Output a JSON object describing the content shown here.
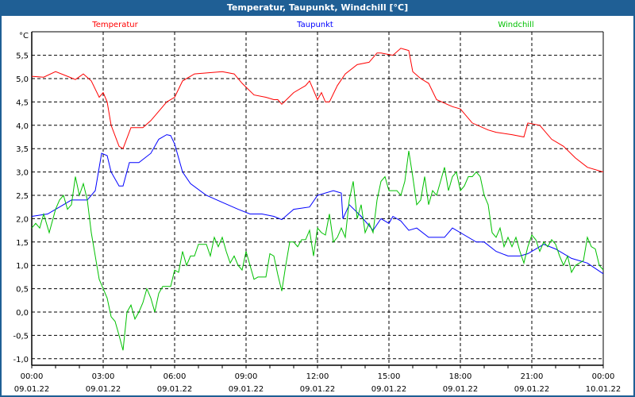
{
  "window": {
    "title": "Temperatur, Taupunkt, Windchill [°C]"
  },
  "chart_data": {
    "type": "line",
    "title": "Temperatur, Taupunkt, Windchill [°C]",
    "ylabel": "°C",
    "xlabel": "",
    "ylim": [
      -1.0,
      5.5
    ],
    "xlim_minutes": [
      0,
      1440
    ],
    "grid": true,
    "legend_placement": "top",
    "y_ticks": [
      "5,5",
      "5,0",
      "4,5",
      "4,0",
      "3,5",
      "3,0",
      "2,5",
      "2,0",
      "1,5",
      "1,0",
      "0,5",
      "0,0",
      "-0,5",
      "-1,0"
    ],
    "y_tick_values": [
      5.5,
      5.0,
      4.5,
      4.0,
      3.5,
      3.0,
      2.5,
      2.0,
      1.5,
      1.0,
      0.5,
      0.0,
      -0.5,
      -1.0
    ],
    "x_ticks": [
      {
        "minutes": 0,
        "time": "00:00",
        "date": "09.01.22"
      },
      {
        "minutes": 180,
        "time": "03:00",
        "date": "09.01.22"
      },
      {
        "minutes": 360,
        "time": "06:00",
        "date": "09.01.22"
      },
      {
        "minutes": 540,
        "time": "09:00",
        "date": "09.01.22"
      },
      {
        "minutes": 720,
        "time": "12:00",
        "date": "09.01.22"
      },
      {
        "minutes": 900,
        "time": "15:00",
        "date": "09.01.22"
      },
      {
        "minutes": 1080,
        "time": "18:00",
        "date": "09.01.22"
      },
      {
        "minutes": 1260,
        "time": "21:00",
        "date": "09.01.22"
      },
      {
        "minutes": 1440,
        "time": "00:00",
        "date": "10.01.22"
      }
    ],
    "series": [
      {
        "name": "Temperatur",
        "color": "#ff0000",
        "x": [
          0,
          30,
          60,
          90,
          110,
          130,
          150,
          170,
          180,
          190,
          200,
          220,
          230,
          250,
          280,
          300,
          320,
          340,
          360,
          380,
          410,
          440,
          480,
          510,
          530,
          560,
          590,
          610,
          620,
          630,
          660,
          690,
          700,
          710,
          720,
          730,
          740,
          750,
          770,
          790,
          820,
          850,
          870,
          880,
          910,
          930,
          950,
          960,
          980,
          1000,
          1020,
          1060,
          1080,
          1110,
          1150,
          1170,
          1210,
          1240,
          1250,
          1280,
          1310,
          1340,
          1370,
          1400,
          1440
        ],
        "values": [
          5.05,
          5.03,
          5.15,
          5.05,
          4.98,
          5.1,
          4.95,
          4.6,
          4.7,
          4.5,
          4.0,
          3.55,
          3.5,
          3.95,
          3.95,
          4.1,
          4.3,
          4.5,
          4.6,
          4.95,
          5.1,
          5.12,
          5.15,
          5.1,
          4.9,
          4.65,
          4.6,
          4.55,
          4.55,
          4.45,
          4.7,
          4.85,
          4.95,
          4.75,
          4.55,
          4.7,
          4.5,
          4.5,
          4.85,
          5.1,
          5.3,
          5.35,
          5.55,
          5.55,
          5.5,
          5.65,
          5.6,
          5.15,
          5.0,
          4.9,
          4.55,
          4.4,
          4.35,
          4.05,
          3.9,
          3.85,
          3.8,
          3.75,
          4.05,
          4.0,
          3.7,
          3.55,
          3.3,
          3.1,
          3.0
        ]
      },
      {
        "name": "Taupunkt",
        "color": "#0000ff",
        "x": [
          0,
          40,
          80,
          100,
          140,
          160,
          176,
          190,
          200,
          220,
          230,
          246,
          270,
          300,
          320,
          340,
          350,
          360,
          380,
          400,
          440,
          480,
          520,
          550,
          580,
          610,
          630,
          660,
          700,
          720,
          760,
          780,
          784,
          800,
          830,
          860,
          880,
          900,
          910,
          930,
          950,
          970,
          1000,
          1040,
          1060,
          1080,
          1120,
          1140,
          1170,
          1200,
          1230,
          1250,
          1290,
          1320,
          1360,
          1400,
          1440
        ],
        "values": [
          2.05,
          2.1,
          2.3,
          2.4,
          2.4,
          2.6,
          3.4,
          3.35,
          3.0,
          2.7,
          2.7,
          3.2,
          3.2,
          3.4,
          3.7,
          3.8,
          3.78,
          3.6,
          3.0,
          2.75,
          2.5,
          2.35,
          2.2,
          2.1,
          2.1,
          2.05,
          1.98,
          2.2,
          2.25,
          2.5,
          2.6,
          2.55,
          2.0,
          2.3,
          2.05,
          1.75,
          2.0,
          1.9,
          2.05,
          1.95,
          1.75,
          1.8,
          1.6,
          1.6,
          1.8,
          1.7,
          1.5,
          1.5,
          1.3,
          1.2,
          1.2,
          1.25,
          1.45,
          1.35,
          1.15,
          1.05,
          0.82
        ]
      },
      {
        "name": "Windchill",
        "color": "#00c000",
        "x": [
          0,
          10,
          20,
          30,
          44,
          60,
          70,
          80,
          90,
          100,
          110,
          120,
          130,
          140,
          150,
          160,
          170,
          180,
          190,
          200,
          210,
          220,
          230,
          240,
          250,
          260,
          270,
          280,
          290,
          300,
          310,
          320,
          330,
          340,
          350,
          360,
          370,
          380,
          390,
          400,
          410,
          420,
          440,
          450,
          460,
          470,
          480,
          490,
          500,
          510,
          520,
          530,
          540,
          550,
          560,
          570,
          590,
          600,
          610,
          620,
          630,
          640,
          650,
          660,
          670,
          680,
          690,
          700,
          710,
          720,
          730,
          740,
          750,
          760,
          770,
          780,
          790,
          800,
          810,
          820,
          830,
          840,
          850,
          860,
          870,
          880,
          890,
          900,
          910,
          920,
          930,
          940,
          950,
          960,
          970,
          980,
          990,
          1000,
          1010,
          1020,
          1030,
          1040,
          1050,
          1060,
          1070,
          1080,
          1090,
          1100,
          1110,
          1120,
          1130,
          1140,
          1150,
          1160,
          1170,
          1180,
          1190,
          1200,
          1210,
          1220,
          1230,
          1240,
          1250,
          1260,
          1270,
          1280,
          1290,
          1300,
          1310,
          1320,
          1330,
          1340,
          1350,
          1360,
          1370,
          1390,
          1400,
          1410,
          1420,
          1430,
          1440
        ],
        "values": [
          1.8,
          1.9,
          1.8,
          2.1,
          1.7,
          2.2,
          2.4,
          2.5,
          2.2,
          2.3,
          2.9,
          2.5,
          2.75,
          2.4,
          1.7,
          1.2,
          0.7,
          0.5,
          0.3,
          -0.1,
          -0.2,
          -0.5,
          -0.82,
          0.0,
          0.15,
          -0.15,
          0.0,
          0.2,
          0.5,
          0.3,
          0.0,
          0.4,
          0.55,
          0.55,
          0.55,
          0.9,
          0.85,
          1.3,
          1.0,
          1.2,
          1.2,
          1.45,
          1.45,
          1.2,
          1.6,
          1.4,
          1.6,
          1.3,
          1.05,
          1.2,
          1.0,
          0.9,
          1.3,
          1.0,
          0.7,
          0.75,
          0.75,
          1.25,
          1.2,
          0.8,
          0.45,
          1.0,
          1.5,
          1.5,
          1.4,
          1.55,
          1.55,
          1.75,
          1.2,
          1.8,
          1.7,
          1.65,
          2.1,
          1.5,
          1.6,
          1.8,
          1.6,
          2.4,
          2.8,
          2.0,
          2.3,
          1.7,
          1.9,
          1.7,
          2.4,
          2.8,
          2.9,
          2.6,
          2.6,
          2.6,
          2.5,
          2.8,
          3.45,
          2.9,
          2.3,
          2.4,
          2.9,
          2.3,
          2.6,
          2.5,
          2.8,
          3.1,
          2.6,
          2.9,
          3.0,
          2.6,
          2.7,
          2.9,
          2.9,
          3.0,
          2.9,
          2.5,
          2.3,
          1.7,
          1.6,
          1.8,
          1.4,
          1.6,
          1.4,
          1.6,
          1.3,
          1.05,
          1.4,
          1.65,
          1.55,
          1.3,
          1.5,
          1.4,
          1.55,
          1.45,
          1.2,
          1.0,
          1.2,
          0.85,
          1.0,
          1.1,
          1.6,
          1.4,
          1.35,
          1.0,
          0.9
        ]
      }
    ]
  }
}
